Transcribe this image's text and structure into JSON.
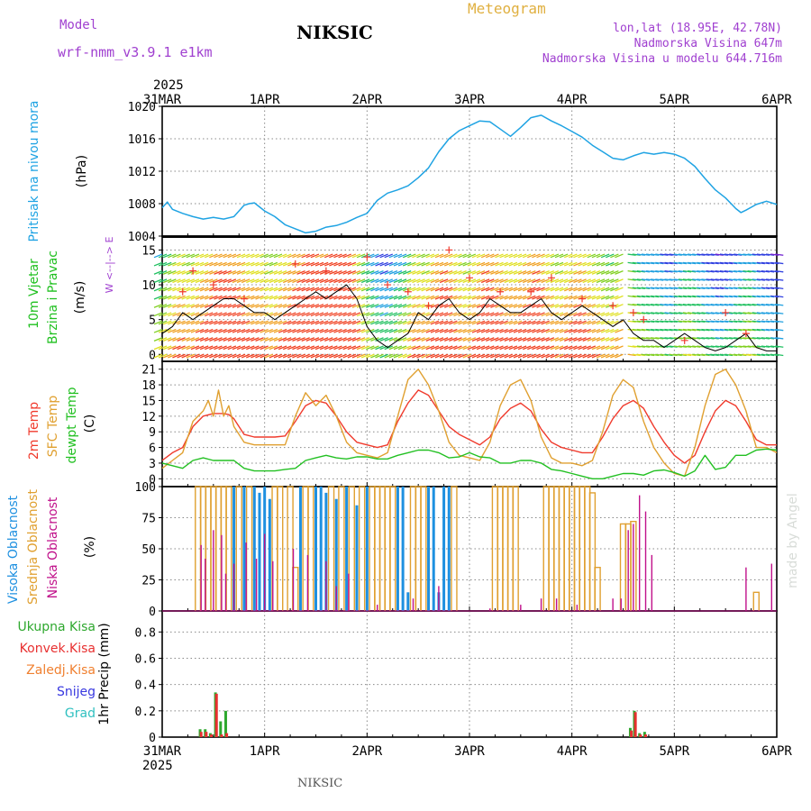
{
  "header": {
    "model_label": "Model",
    "model_name": "wrf-nmm_v3.9.1 e1km",
    "station": "NIKSIC",
    "meteogram": "Meteogram",
    "lonlat": "lon,lat (18.95E, 42.78N)",
    "altitude": "Nadmorska Visina 647m",
    "model_altitude": "Nadmorska Visina u modelu 644.716m",
    "footer_station": "NIKSIC",
    "credit": "made by Angel"
  },
  "colors": {
    "pressure": "#1fa3e3",
    "temp2m": "#f03a2c",
    "sfc": "#e0a030",
    "dewpt": "#22c022",
    "high_cloud": "#1e90e0",
    "mid_cloud": "#e0a030",
    "low_cloud": "#c0108a",
    "precip_total": "#2ea82e",
    "precip_conv": "#e83030",
    "header_purple": "#a040d0",
    "header_gold": "#e0b040"
  },
  "time_axis": {
    "year": "2025",
    "ticks": [
      "31MAR",
      "1APR",
      "2APR",
      "3APR",
      "4APR",
      "5APR",
      "6APR"
    ]
  },
  "chart_data": [
    {
      "type": "line",
      "panel": "pressure",
      "ylabel": "Pritisak na nivou mora",
      "unit": "(hPa)",
      "ylim": [
        1004,
        1020
      ],
      "yticks": [
        1004,
        1008,
        1012,
        1016,
        1020
      ],
      "grid": true,
      "series": [
        {
          "name": "Pritisak na nivou mora",
          "x": [
            0,
            0.05,
            0.1,
            0.2,
            0.3,
            0.4,
            0.5,
            0.6,
            0.7,
            0.8,
            0.85,
            0.9,
            1.0,
            1.1,
            1.2,
            1.3,
            1.4,
            1.5,
            1.6,
            1.7,
            1.8,
            1.9,
            2.0,
            2.1,
            2.2,
            2.3,
            2.4,
            2.5,
            2.6,
            2.7,
            2.8,
            2.9,
            3.0,
            3.1,
            3.2,
            3.3,
            3.4,
            3.5,
            3.6,
            3.7,
            3.8,
            3.9,
            4.0,
            4.1,
            4.2,
            4.3,
            4.4,
            4.5,
            4.6,
            4.7,
            4.8,
            4.9,
            5.0,
            5.1,
            5.2,
            5.3,
            5.4,
            5.5,
            5.6,
            5.65,
            5.7,
            5.8,
            5.9,
            6.0
          ],
          "values": [
            1007.5,
            1008.2,
            1007.3,
            1006.8,
            1006.4,
            1006.1,
            1006.3,
            1006.1,
            1006.4,
            1007.8,
            1008.0,
            1008.1,
            1007.1,
            1006.4,
            1005.4,
            1004.9,
            1004.4,
            1004.6,
            1005.1,
            1005.3,
            1005.7,
            1006.3,
            1006.8,
            1008.4,
            1009.3,
            1009.7,
            1010.2,
            1011.2,
            1012.4,
            1014.4,
            1016.0,
            1017.0,
            1017.6,
            1018.2,
            1018.1,
            1017.2,
            1016.3,
            1017.4,
            1018.6,
            1018.9,
            1018.2,
            1017.6,
            1016.9,
            1016.2,
            1015.2,
            1014.4,
            1013.6,
            1013.4,
            1013.9,
            1014.3,
            1014.1,
            1014.3,
            1014.1,
            1013.6,
            1012.6,
            1011.1,
            1009.7,
            1008.7,
            1007.4,
            1006.9,
            1007.2,
            1007.9,
            1008.3,
            1007.9
          ]
        }
      ]
    },
    {
      "type": "line",
      "panel": "wind",
      "ylabel": [
        "10m Vjetar",
        "Brzina i Pravac"
      ],
      "unit": "(m/s)",
      "compass": "W <--|--> E",
      "ylim": [
        -1,
        17
      ],
      "yticks": [
        0,
        5,
        10,
        15
      ],
      "grid": true,
      "series": [
        {
          "name": "speed",
          "x": [
            0,
            0.1,
            0.2,
            0.3,
            0.4,
            0.5,
            0.6,
            0.7,
            0.8,
            0.9,
            1.0,
            1.1,
            1.2,
            1.3,
            1.4,
            1.5,
            1.6,
            1.7,
            1.8,
            1.9,
            2.0,
            2.1,
            2.2,
            2.3,
            2.4,
            2.5,
            2.6,
            2.7,
            2.8,
            2.9,
            3.0,
            3.1,
            3.2,
            3.3,
            3.4,
            3.5,
            3.6,
            3.7,
            3.8,
            3.9,
            4.0,
            4.1,
            4.2,
            4.3,
            4.4,
            4.5,
            4.6,
            4.7,
            4.8,
            4.9,
            5.0,
            5.1,
            5.2,
            5.3,
            5.4,
            5.5,
            5.6,
            5.7,
            5.8,
            5.9,
            6.0
          ],
          "values": [
            3,
            4,
            6,
            5,
            6,
            7,
            8,
            8,
            7,
            6,
            6,
            5,
            6,
            7,
            8,
            9,
            8,
            9,
            10,
            8,
            4,
            2,
            1,
            2,
            3,
            6,
            5,
            7,
            8,
            6,
            5,
            6,
            8,
            7,
            6,
            6,
            7,
            8,
            6,
            5,
            6,
            7,
            6,
            5,
            4,
            5,
            3,
            2,
            2,
            1,
            2,
            3,
            2,
            1,
            0.5,
            1,
            2,
            3,
            1,
            0.5,
            0.5
          ]
        },
        {
          "name": "gust",
          "x": [
            0.2,
            0.3,
            0.5,
            0.8,
            1.3,
            1.6,
            2.0,
            2.2,
            2.4,
            2.6,
            2.8,
            3.0,
            3.3,
            3.6,
            3.8,
            4.1,
            4.4,
            4.6,
            4.7,
            5.1,
            5.5,
            5.7
          ],
          "values": [
            9,
            12,
            10,
            8,
            13,
            12,
            14,
            10,
            9,
            7,
            15,
            11,
            9,
            9,
            11,
            8,
            7,
            6,
            5,
            2,
            6,
            3
          ]
        }
      ]
    },
    {
      "type": "line",
      "panel": "temperature",
      "ylabel": [
        "2m Temp",
        "SFC Temp",
        "dewpt Temp"
      ],
      "unit": "(C)",
      "ylim": [
        -1.5,
        22.5
      ],
      "yticks": [
        0,
        3,
        6,
        9,
        12,
        15,
        18,
        21
      ],
      "grid": true,
      "series": [
        {
          "name": "2m Temp",
          "x": [
            0,
            0.1,
            0.2,
            0.3,
            0.4,
            0.5,
            0.6,
            0.65,
            0.7,
            0.8,
            0.9,
            1.0,
            1.1,
            1.2,
            1.3,
            1.4,
            1.5,
            1.6,
            1.7,
            1.8,
            1.9,
            2.0,
            2.1,
            2.2,
            2.3,
            2.4,
            2.5,
            2.6,
            2.7,
            2.8,
            2.9,
            3.0,
            3.1,
            3.2,
            3.3,
            3.4,
            3.5,
            3.6,
            3.7,
            3.8,
            3.9,
            4.0,
            4.1,
            4.2,
            4.3,
            4.4,
            4.5,
            4.6,
            4.7,
            4.8,
            4.9,
            5.0,
            5.1,
            5.2,
            5.3,
            5.4,
            5.5,
            5.6,
            5.7,
            5.8,
            5.9,
            6.0
          ],
          "values": [
            3.5,
            5,
            6,
            10,
            12,
            12.5,
            12.5,
            12.3,
            11.5,
            8.5,
            8,
            8,
            8,
            8.2,
            11,
            14,
            15,
            14.5,
            12,
            9,
            7,
            6.5,
            6,
            6.5,
            11,
            14.5,
            17,
            16,
            13,
            10,
            8.5,
            7.5,
            6.5,
            8,
            11.5,
            13.5,
            14.5,
            13,
            9.5,
            7,
            6,
            5.5,
            5,
            5,
            8,
            11.5,
            14,
            15,
            13.5,
            10,
            7,
            4.5,
            3,
            4.5,
            9,
            13,
            15,
            14,
            11,
            7.5,
            6.5,
            6.5
          ]
        },
        {
          "name": "SFC Temp",
          "x": [
            0,
            0.1,
            0.2,
            0.3,
            0.4,
            0.45,
            0.5,
            0.55,
            0.6,
            0.65,
            0.7,
            0.8,
            0.9,
            1.0,
            1.1,
            1.2,
            1.3,
            1.4,
            1.5,
            1.6,
            1.7,
            1.8,
            1.9,
            2.0,
            2.1,
            2.2,
            2.3,
            2.4,
            2.5,
            2.6,
            2.7,
            2.8,
            2.9,
            3.0,
            3.1,
            3.2,
            3.3,
            3.4,
            3.5,
            3.6,
            3.7,
            3.8,
            3.9,
            4.0,
            4.1,
            4.2,
            4.3,
            4.4,
            4.5,
            4.6,
            4.7,
            4.8,
            4.9,
            5.0,
            5.1,
            5.2,
            5.3,
            5.4,
            5.5,
            5.6,
            5.7,
            5.8,
            5.9,
            6.0
          ],
          "values": [
            2,
            3.5,
            5,
            11,
            13,
            15,
            12,
            17,
            12,
            14,
            10,
            7,
            6.5,
            6.5,
            6.5,
            6.5,
            12,
            16.5,
            14,
            16,
            12,
            7,
            5,
            4.5,
            4,
            5,
            12,
            19,
            21,
            18,
            13,
            7,
            4.5,
            4,
            3.5,
            7,
            14,
            18,
            19,
            15,
            8,
            4,
            3,
            3,
            2.5,
            3.5,
            9,
            16,
            19,
            17.5,
            11,
            6,
            3,
            1,
            0.5,
            6,
            14,
            20,
            21,
            18,
            13,
            6,
            6,
            5
          ]
        },
        {
          "name": "dewpt Temp",
          "x": [
            0,
            0.1,
            0.2,
            0.3,
            0.4,
            0.5,
            0.6,
            0.7,
            0.8,
            0.9,
            1.0,
            1.1,
            1.2,
            1.3,
            1.4,
            1.5,
            1.6,
            1.7,
            1.8,
            1.9,
            2.0,
            2.1,
            2.2,
            2.3,
            2.4,
            2.5,
            2.6,
            2.7,
            2.8,
            2.9,
            3.0,
            3.1,
            3.2,
            3.3,
            3.4,
            3.5,
            3.6,
            3.7,
            3.8,
            3.9,
            4.0,
            4.1,
            4.2,
            4.3,
            4.4,
            4.5,
            4.6,
            4.7,
            4.8,
            4.9,
            5.0,
            5.1,
            5.2,
            5.3,
            5.4,
            5.5,
            5.6,
            5.7,
            5.8,
            5.9,
            6.0
          ],
          "values": [
            3,
            2.5,
            2,
            3.5,
            4,
            3.5,
            3.5,
            3.5,
            2,
            1.5,
            1.5,
            1.5,
            1.8,
            2,
            3.5,
            4,
            4.5,
            4,
            3.8,
            4.2,
            4.2,
            3.8,
            3.8,
            4.5,
            5,
            5.5,
            5.5,
            5,
            4,
            4.2,
            5,
            4.2,
            4,
            3,
            3,
            3.5,
            3.5,
            3,
            1.8,
            1.5,
            1,
            0.5,
            0,
            0,
            0.5,
            1,
            1,
            0.7,
            1.5,
            1.7,
            1.2,
            0.5,
            1.5,
            4.5,
            1.8,
            2.2,
            4.5,
            4.5,
            5.5,
            5.7,
            5.5
          ]
        }
      ]
    },
    {
      "type": "bar",
      "panel": "clouds",
      "ylabel": [
        "Visoka Oblacnost",
        "Srednja Oblacnost",
        "Niska Oblacnost"
      ],
      "unit": "(%)",
      "ylim": [
        0,
        100
      ],
      "yticks": [
        0,
        25,
        50,
        75,
        100
      ],
      "grid": true,
      "series": [
        {
          "name": "Visoka Oblacnost",
          "x": [
            0.7,
            0.8,
            0.9,
            0.95,
            1.0,
            1.05,
            1.35,
            1.5,
            1.55,
            1.6,
            1.7,
            1.8,
            1.9,
            2.0,
            2.3,
            2.35,
            2.4,
            2.6,
            2.65,
            2.7,
            2.75,
            2.8
          ],
          "values": [
            100,
            100,
            100,
            95,
            100,
            90,
            100,
            100,
            100,
            95,
            90,
            100,
            85,
            100,
            100,
            100,
            15,
            100,
            100,
            15,
            100,
            100
          ]
        },
        {
          "name": "Srednja Oblacnost",
          "x": [
            0.35,
            0.4,
            0.45,
            0.5,
            0.55,
            0.6,
            0.65,
            0.75,
            0.85,
            1.1,
            1.15,
            1.25,
            1.3,
            1.4,
            1.45,
            1.65,
            1.75,
            1.85,
            1.95,
            2.05,
            2.1,
            2.15,
            2.2,
            2.25,
            2.45,
            2.5,
            2.55,
            2.85,
            3.25,
            3.3,
            3.35,
            3.4,
            3.45,
            3.75,
            3.8,
            3.85,
            3.9,
            3.95,
            4.0,
            4.05,
            4.1,
            4.15,
            4.2,
            4.25,
            4.5,
            4.55,
            4.6,
            5.8
          ],
          "values": [
            100,
            100,
            100,
            100,
            100,
            100,
            100,
            100,
            100,
            100,
            100,
            100,
            35,
            100,
            100,
            100,
            100,
            100,
            100,
            100,
            100,
            100,
            100,
            100,
            100,
            100,
            100,
            100,
            100,
            100,
            100,
            100,
            100,
            100,
            100,
            100,
            100,
            100,
            100,
            100,
            100,
            100,
            95,
            35,
            70,
            70,
            72,
            15
          ]
        },
        {
          "name": "Niska Oblacnost",
          "x": [
            0.38,
            0.42,
            0.5,
            0.58,
            0.62,
            0.7,
            0.82,
            0.92,
            1.0,
            1.08,
            1.28,
            1.42,
            1.6,
            1.7,
            1.82,
            2.1,
            2.45,
            2.7,
            3.2,
            3.5,
            3.7,
            3.85,
            4.05,
            4.4,
            4.48,
            4.55,
            4.6,
            4.66,
            4.72,
            4.78,
            5.7,
            5.95
          ],
          "values": [
            53,
            42,
            65,
            61,
            30,
            38,
            55,
            42,
            62,
            40,
            50,
            45,
            40,
            20,
            30,
            5,
            10,
            20,
            2,
            5,
            10,
            10,
            5,
            10,
            10,
            65,
            70,
            93,
            80,
            45,
            35,
            38
          ]
        }
      ]
    },
    {
      "type": "bar",
      "panel": "precip",
      "ylabel": "1hr Precip",
      "unit": "(mm)",
      "ylim": [
        0,
        0.96
      ],
      "yticks": [
        0,
        0.2,
        0.4,
        0.6,
        0.8
      ],
      "legend": [
        "Ukupna Kisa",
        "Konvek.Kisa",
        "Zaledj.Kisa",
        "Snijeg",
        "Grad"
      ],
      "legend_colors": [
        "#2ea82e",
        "#e83030",
        "#f08030",
        "#3838e0",
        "#30c0c0"
      ],
      "grid": true,
      "series": [
        {
          "name": "Ukupna Kisa",
          "x": [
            0.37,
            0.42,
            0.47,
            0.52,
            0.57,
            0.62,
            4.57,
            4.61,
            4.66,
            4.71
          ],
          "values": [
            0.06,
            0.06,
            0.03,
            0.34,
            0.12,
            0.2,
            0.07,
            0.2,
            0.03,
            0.04
          ]
        },
        {
          "name": "Konvek.Kisa",
          "x": [
            0.38,
            0.43,
            0.48,
            0.53,
            0.58,
            0.63,
            4.58,
            4.62,
            4.67,
            4.72
          ],
          "values": [
            0.04,
            0.04,
            0.02,
            0.33,
            0.02,
            0.03,
            0.05,
            0.19,
            0.02,
            0.02
          ]
        }
      ]
    }
  ]
}
